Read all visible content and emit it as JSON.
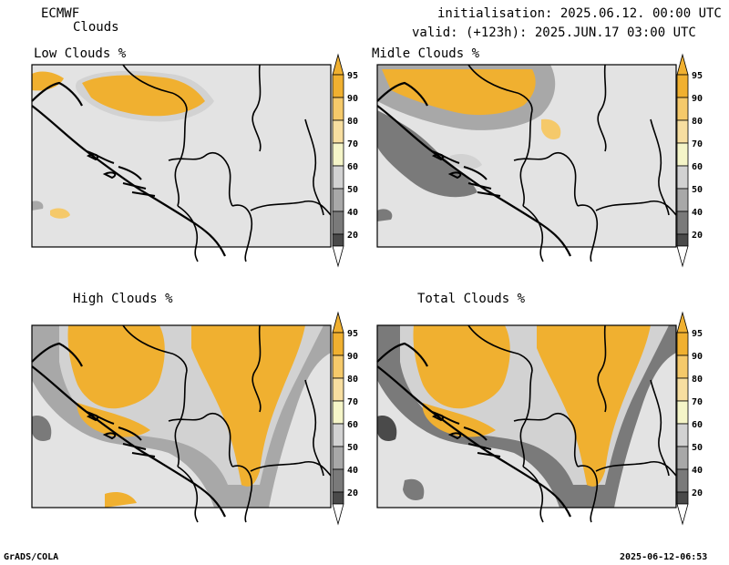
{
  "header": {
    "model": "ECMWF",
    "product": "Clouds",
    "initialisation": "initialisation: 2025.06.12. 00:00 UTC",
    "valid": "valid: (+123h): 2025.JUN.17 03:00 UTC"
  },
  "panels": [
    {
      "id": "low",
      "title": "Low Clouds %"
    },
    {
      "id": "middle",
      "title": "Midle Clouds %"
    },
    {
      "id": "high",
      "title": "High Clouds %"
    },
    {
      "id": "total",
      "title": "Total Clouds %"
    }
  ],
  "colorbar": {
    "labels": [
      "95",
      "90",
      "80",
      "70",
      "60",
      "50",
      "40",
      "20"
    ],
    "colors": [
      "#f0b030",
      "#f5c96a",
      "#f7dea0",
      "#f5f5c8",
      "#d2d2d2",
      "#a8a8a8",
      "#7a7a7a",
      "#4a4a4a"
    ],
    "under_color": "#ffffff",
    "over_color": "#f0b030"
  },
  "footer": {
    "left": "GrADS/COLA",
    "right": "2025-06-12-06:53"
  }
}
